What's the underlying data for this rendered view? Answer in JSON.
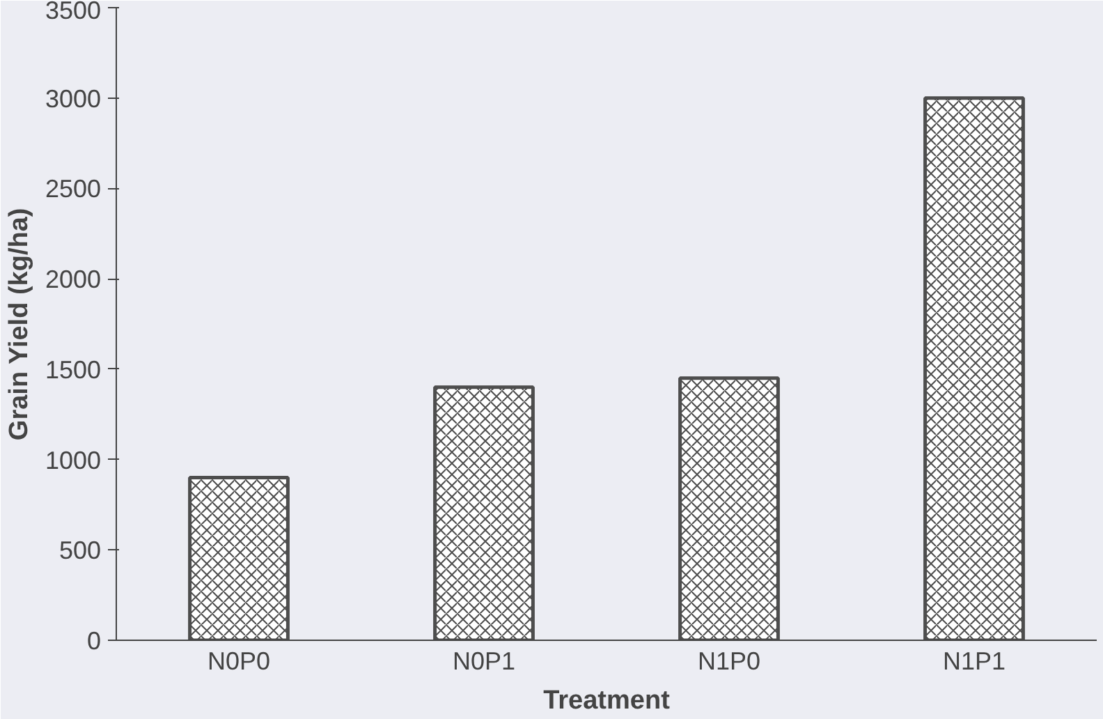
{
  "chart_data": {
    "type": "bar",
    "xlabel": "Treatment",
    "ylabel": "Grain Yield (kg/ha)",
    "categories": [
      "N0P0",
      "N0P1",
      "N1P0",
      "N1P1"
    ],
    "values": [
      900,
      1400,
      1450,
      3000
    ],
    "color": "#4d4d4d",
    "ylim": [
      0,
      3500
    ],
    "yticks": [
      0,
      500,
      1000,
      1500,
      2000,
      2500,
      3000,
      3500
    ],
    "grid": false
  }
}
